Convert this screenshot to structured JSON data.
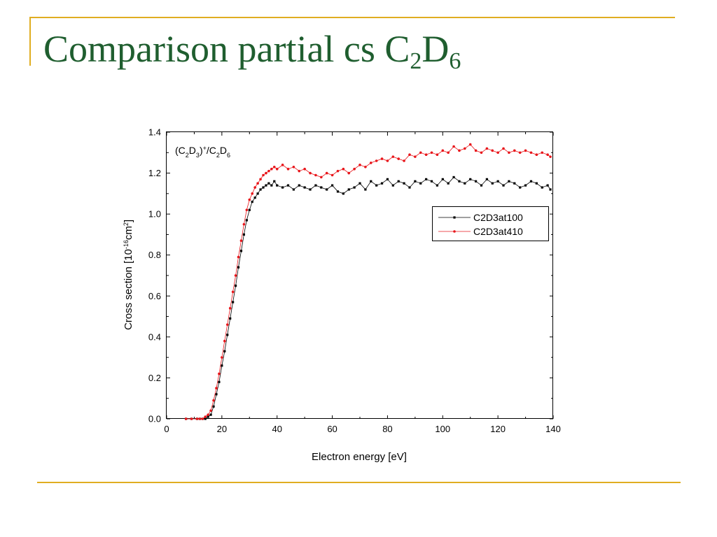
{
  "slide": {
    "title_main": "Comparison partial cs C",
    "title_sub1": "2",
    "title_mid": "D",
    "title_sub2": "6",
    "accent_color": "#E0AD21",
    "title_color": "#1F5E2F"
  },
  "chart_data": {
    "type": "line",
    "annotation": {
      "parts": [
        {
          "t": "(C",
          "s": "n"
        },
        {
          "t": "2",
          "s": "sub"
        },
        {
          "t": "D",
          "s": "n"
        },
        {
          "t": "3",
          "s": "sub"
        },
        {
          "t": ")",
          "s": "n"
        },
        {
          "t": "+",
          "s": "sup"
        },
        {
          "t": "/C",
          "s": "n"
        },
        {
          "t": "2",
          "s": "sub"
        },
        {
          "t": "D",
          "s": "n"
        },
        {
          "t": "6",
          "s": "sub"
        }
      ]
    },
    "xlabel": "Electron energy [eV]",
    "ylabel": {
      "parts": [
        {
          "t": "Cross section [10",
          "s": "n"
        },
        {
          "t": "-16",
          "s": "sup"
        },
        {
          "t": "cm",
          "s": "n"
        },
        {
          "t": "2",
          "s": "sup"
        },
        {
          "t": "]",
          "s": "n"
        }
      ]
    },
    "xlim": [
      0,
      140
    ],
    "ylim": [
      0.0,
      1.4
    ],
    "xticks": [
      0,
      20,
      40,
      60,
      80,
      100,
      120,
      140
    ],
    "xtick_labels": [
      "0",
      "20",
      "40",
      "60",
      "80",
      "100",
      "120",
      "140"
    ],
    "yticks": [
      0.0,
      0.2,
      0.4,
      0.6,
      0.8,
      1.0,
      1.2,
      1.4
    ],
    "ytick_labels": [
      "0.0",
      "0.2",
      "0.4",
      "0.6",
      "0.8",
      "1.0",
      "1.2",
      "1.4"
    ],
    "grid": false,
    "legend_position": "right, upper-middle",
    "series": [
      {
        "name": "C2D3at100",
        "color": "#000000",
        "marker": "square",
        "x": [
          7,
          9,
          11,
          12,
          13,
          14,
          15,
          16,
          17,
          18,
          19,
          20,
          21,
          22,
          23,
          24,
          25,
          26,
          27,
          28,
          29,
          30,
          31,
          32,
          33,
          34,
          35,
          36,
          37,
          38,
          39,
          40,
          42,
          44,
          46,
          48,
          50,
          52,
          54,
          56,
          58,
          60,
          62,
          64,
          66,
          68,
          70,
          72,
          74,
          76,
          78,
          80,
          82,
          84,
          86,
          88,
          90,
          92,
          94,
          96,
          98,
          100,
          102,
          104,
          106,
          108,
          110,
          112,
          114,
          116,
          118,
          120,
          122,
          124,
          126,
          128,
          130,
          132,
          134,
          136,
          138,
          139
        ],
        "y": [
          0.0,
          0.0,
          0.0,
          0.0,
          0.0,
          0.0,
          0.01,
          0.02,
          0.06,
          0.12,
          0.18,
          0.26,
          0.33,
          0.41,
          0.49,
          0.57,
          0.65,
          0.74,
          0.82,
          0.9,
          0.97,
          1.02,
          1.06,
          1.08,
          1.1,
          1.12,
          1.13,
          1.14,
          1.15,
          1.14,
          1.16,
          1.14,
          1.13,
          1.14,
          1.12,
          1.14,
          1.13,
          1.12,
          1.14,
          1.13,
          1.12,
          1.14,
          1.11,
          1.1,
          1.12,
          1.13,
          1.15,
          1.12,
          1.16,
          1.14,
          1.15,
          1.17,
          1.14,
          1.16,
          1.15,
          1.13,
          1.16,
          1.15,
          1.17,
          1.16,
          1.14,
          1.17,
          1.15,
          1.18,
          1.16,
          1.15,
          1.17,
          1.16,
          1.14,
          1.17,
          1.15,
          1.16,
          1.14,
          1.16,
          1.15,
          1.13,
          1.14,
          1.16,
          1.15,
          1.13,
          1.14,
          1.12
        ]
      },
      {
        "name": "C2D3at410",
        "color": "#E8161B",
        "marker": "circle",
        "x": [
          7,
          9,
          11,
          12,
          13,
          14,
          15,
          16,
          17,
          18,
          19,
          20,
          21,
          22,
          23,
          24,
          25,
          26,
          27,
          28,
          29,
          30,
          31,
          32,
          33,
          34,
          35,
          36,
          37,
          38,
          39,
          40,
          42,
          44,
          46,
          48,
          50,
          52,
          54,
          56,
          58,
          60,
          62,
          64,
          66,
          68,
          70,
          72,
          74,
          76,
          78,
          80,
          82,
          84,
          86,
          88,
          90,
          92,
          94,
          96,
          98,
          100,
          102,
          104,
          106,
          108,
          110,
          112,
          114,
          116,
          118,
          120,
          122,
          124,
          126,
          128,
          130,
          132,
          134,
          136,
          138,
          139
        ],
        "y": [
          0.0,
          0.0,
          0.0,
          0.0,
          0.0,
          0.01,
          0.02,
          0.04,
          0.09,
          0.15,
          0.22,
          0.3,
          0.38,
          0.46,
          0.54,
          0.62,
          0.7,
          0.79,
          0.87,
          0.95,
          1.02,
          1.07,
          1.1,
          1.13,
          1.15,
          1.17,
          1.19,
          1.2,
          1.21,
          1.22,
          1.23,
          1.22,
          1.24,
          1.22,
          1.23,
          1.21,
          1.22,
          1.2,
          1.19,
          1.18,
          1.2,
          1.19,
          1.21,
          1.22,
          1.2,
          1.22,
          1.24,
          1.23,
          1.25,
          1.26,
          1.27,
          1.26,
          1.28,
          1.27,
          1.26,
          1.29,
          1.28,
          1.3,
          1.29,
          1.3,
          1.29,
          1.31,
          1.3,
          1.33,
          1.31,
          1.32,
          1.34,
          1.31,
          1.3,
          1.32,
          1.31,
          1.3,
          1.32,
          1.3,
          1.31,
          1.3,
          1.31,
          1.3,
          1.29,
          1.3,
          1.29,
          1.28
        ]
      }
    ]
  }
}
